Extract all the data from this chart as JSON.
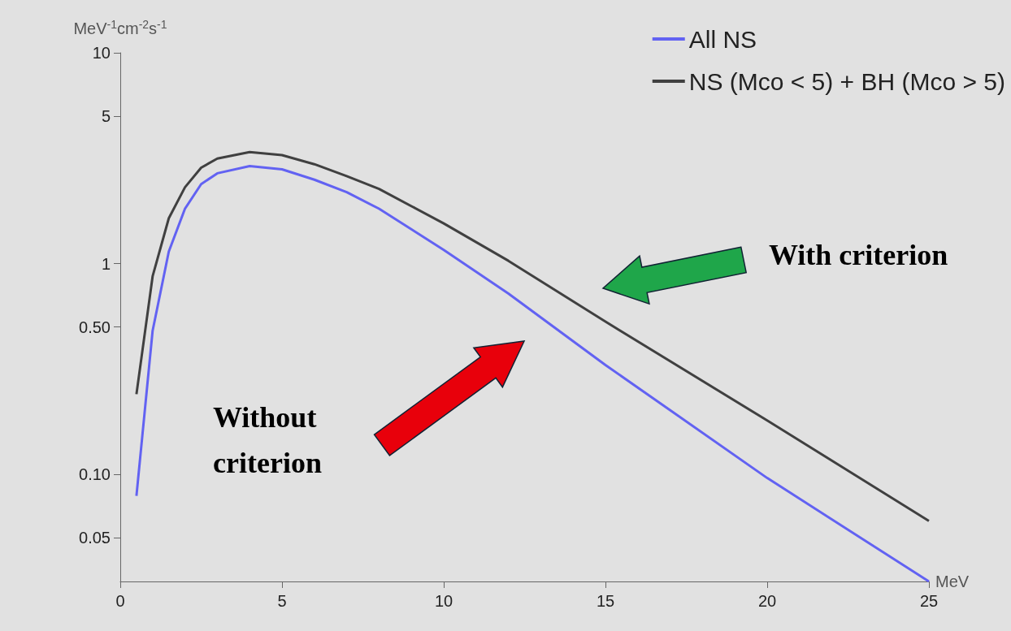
{
  "chart_data": {
    "type": "line",
    "xlabel": "MeV",
    "ylabel": "MeV$^{-1}$cm$^{-2}$s$^{-1}$",
    "x": [
      0.5,
      1,
      1.5,
      2,
      2.5,
      3,
      4,
      5,
      6,
      7,
      8,
      10,
      12,
      15,
      20,
      25
    ],
    "series": [
      {
        "name": "All NS",
        "color": "#6262f2",
        "values": [
          0.079,
          0.48,
          1.14,
          1.82,
          2.38,
          2.68,
          2.9,
          2.8,
          2.5,
          2.18,
          1.82,
          1.16,
          0.72,
          0.33,
          0.096,
          0.031
        ]
      },
      {
        "name": "NS (Mco < 5) + BH (Mco > 5)",
        "color": "#404040",
        "values": [
          0.24,
          0.87,
          1.64,
          2.3,
          2.85,
          3.15,
          3.38,
          3.27,
          2.96,
          2.6,
          2.26,
          1.55,
          1.03,
          0.53,
          0.18,
          0.06
        ]
      }
    ],
    "xlim": [
      0,
      25
    ],
    "xticks": [
      0,
      5,
      10,
      15,
      20,
      25
    ],
    "ylim": [
      0.031,
      10
    ],
    "yticks": [
      {
        "value": 0.05,
        "label": "0.05"
      },
      {
        "value": 0.1,
        "label": "0.10"
      },
      {
        "value": 0.5,
        "label": "0.50"
      },
      1,
      5,
      10
    ],
    "log": "y",
    "grid": false,
    "legend": "top right",
    "marker": "none",
    "line_style": "solid",
    "annotations": [
      "With criterion",
      "Without criterion"
    ]
  }
}
